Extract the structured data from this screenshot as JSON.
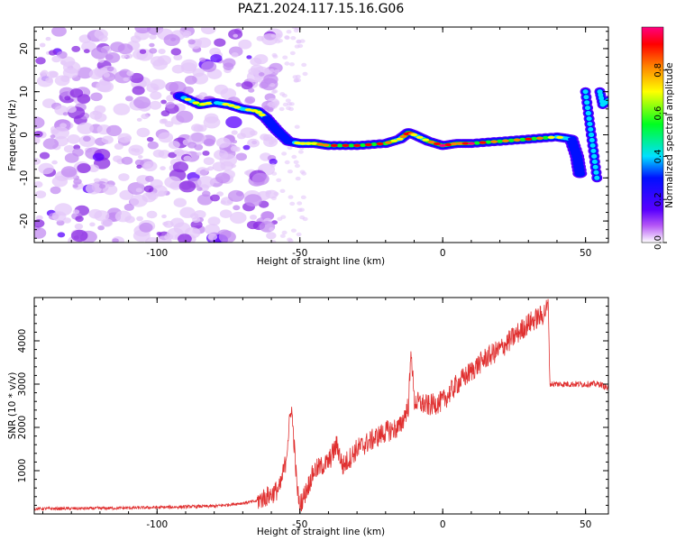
{
  "title": "PAZ1.2024.117.15.16.G06",
  "chart_data": [
    {
      "type": "heatmap",
      "xlabel": "Height of straight line (km)",
      "ylabel": "Frequency (Hz)",
      "xlim": [
        -143,
        58
      ],
      "ylim": [
        -25,
        25
      ],
      "xticks": [
        -100,
        -50,
        0,
        50
      ],
      "yticks": [
        -20,
        -10,
        0,
        10,
        20
      ],
      "colorbar": {
        "label": "Normalized spectral amplitude",
        "range": [
          0.0,
          1.0
        ],
        "ticks": [
          0.0,
          0.2,
          0.4,
          0.6,
          0.8
        ]
      },
      "ridge": {
        "x": [
          -92,
          -85,
          -80,
          -75,
          -70,
          -65,
          -62,
          -58,
          -54,
          -50,
          -45,
          -40,
          -30,
          -20,
          -15,
          -12,
          -10,
          -5,
          0,
          5,
          10,
          20,
          30,
          40,
          45,
          47,
          48
        ],
        "y": [
          9,
          7,
          7.5,
          7,
          6,
          5.5,
          4,
          1,
          -1.5,
          -2,
          -2,
          -2.5,
          -2.5,
          -2,
          -1,
          0.5,
          0,
          -1.5,
          -2.5,
          -2,
          -2,
          -1.5,
          -1,
          -0.5,
          -1,
          -5,
          -9
        ],
        "amplitude": [
          0.5,
          0.75,
          0.5,
          0.6,
          0.55,
          0.7,
          0.5,
          0.45,
          0.4,
          0.6,
          0.7,
          0.85,
          0.9,
          0.8,
          0.6,
          0.9,
          0.6,
          0.7,
          0.95,
          0.7,
          0.95,
          0.7,
          0.85,
          0.6,
          0.5,
          0.3,
          0.2
        ]
      },
      "secondary_ridge": {
        "x": [
          50,
          51,
          52,
          53,
          54,
          55,
          56,
          58
        ],
        "y": [
          10,
          5,
          0,
          -5,
          -10,
          10,
          7,
          8
        ]
      }
    },
    {
      "type": "line",
      "xlabel": "Height of straight line (km)",
      "ylabel": "SNR (10 * v/v)",
      "xlim": [
        -143,
        58
      ],
      "ylim": [
        0,
        5000
      ],
      "xticks": [
        -100,
        -50,
        0,
        50
      ],
      "yticks": [
        1000,
        2000,
        3000,
        4000
      ],
      "series": [
        {
          "color": "#e03030",
          "x": [
            -143,
            -120,
            -100,
            -80,
            -70,
            -65,
            -60,
            -57,
            -55,
            -53,
            -52,
            -51,
            -50,
            -48,
            -45,
            -40,
            -37,
            -35,
            -30,
            -25,
            -20,
            -15,
            -12,
            -11,
            -10,
            -5,
            0,
            5,
            10,
            15,
            20,
            25,
            30,
            35,
            37,
            37.5,
            40,
            45,
            50,
            55,
            58
          ],
          "y": [
            120,
            130,
            150,
            180,
            250,
            300,
            450,
            600,
            1200,
            2500,
            1600,
            600,
            200,
            500,
            1000,
            1200,
            1600,
            1100,
            1500,
            1700,
            1900,
            2000,
            2500,
            3800,
            2600,
            2500,
            2600,
            3000,
            3300,
            3600,
            3800,
            4100,
            4400,
            4600,
            4800,
            3000,
            3000,
            3000,
            3000,
            3000,
            2900
          ]
        }
      ]
    }
  ]
}
